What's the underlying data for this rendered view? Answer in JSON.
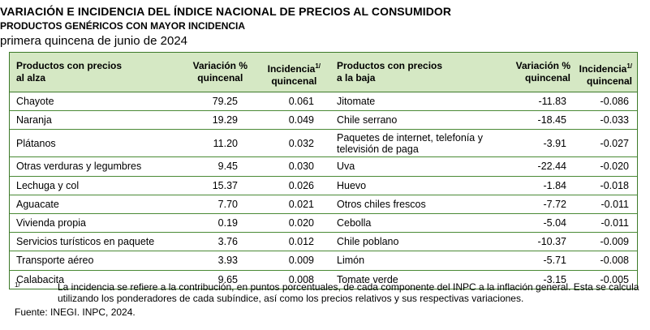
{
  "title": "VARIACIÓN E INCIDENCIA DEL ÍNDICE NACIONAL DE PRECIOS AL CONSUMIDOR",
  "subtitle": "PRODUCTOS GENÉRICOS CON MAYOR INCIDENCIA",
  "period": "primera quincena de junio de 2024",
  "headers": {
    "alza_line1": "Productos con precios",
    "alza_line2": "al alza",
    "var1_line1": "Variación %",
    "var1_line2": "quincenal",
    "inc1_line1": "Incidencia",
    "inc1_sup": "1/",
    "inc1_line2": "quincenal",
    "baja_line1": "Productos con precios",
    "baja_line2": "a la baja",
    "var2_line1": "Variación %",
    "var2_line2": "quincenal",
    "inc2_line1": "Incidencia",
    "inc2_sup": "1/",
    "inc2_line2": "quincenal"
  },
  "rows": [
    {
      "up": "Chayote",
      "up_var": "79.25",
      "up_inc": "0.061",
      "down": "Jitomate",
      "down_var": "-11.83",
      "down_inc": "-0.086"
    },
    {
      "up": "Naranja",
      "up_var": "19.29",
      "up_inc": "0.049",
      "down": "Chile serrano",
      "down_var": "-18.45",
      "down_inc": "-0.033"
    },
    {
      "up": "Plátanos",
      "up_var": "11.20",
      "up_inc": "0.032",
      "down_line1": "Paquetes de internet, telefonía y",
      "down_line2": "televisión de paga",
      "down_var": "-3.91",
      "down_inc": "-0.027"
    },
    {
      "up": "Otras verduras y legumbres",
      "up_var": "9.45",
      "up_inc": "0.030",
      "down": "Uva",
      "down_var": "-22.44",
      "down_inc": "-0.020"
    },
    {
      "up": "Lechuga y col",
      "up_var": "15.37",
      "up_inc": "0.026",
      "down": "Huevo",
      "down_var": "-1.84",
      "down_inc": "-0.018"
    },
    {
      "up": "Aguacate",
      "up_var": "7.70",
      "up_inc": "0.021",
      "down": "Otros chiles frescos",
      "down_var": "-7.72",
      "down_inc": "-0.011"
    },
    {
      "up": "Vivienda propia",
      "up_var": "0.19",
      "up_inc": "0.020",
      "down": "Cebolla",
      "down_var": "-5.04",
      "down_inc": "-0.011"
    },
    {
      "up": "Servicios turísticos en paquete",
      "up_var": "3.76",
      "up_inc": "0.012",
      "down": "Chile poblano",
      "down_var": "-10.37",
      "down_inc": "-0.009"
    },
    {
      "up": "Transporte aéreo",
      "up_var": "3.93",
      "up_inc": "0.009",
      "down": "Limón",
      "down_var": "-5.71",
      "down_inc": "-0.008"
    },
    {
      "up": "Calabacita",
      "up_var": "9.65",
      "up_inc": "0.008",
      "down": "Tomate verde",
      "down_var": "-3.15",
      "down_inc": "-0.005"
    }
  ],
  "footnote_marker": "1/",
  "footnote": "La incidencia se refiere a la contribución, en puntos porcentuales, de cada componente del INPC a la inflación general. Esta se calcula utilizando los ponderadores de cada subíndice, así como los precios relativos y sus respectivas variaciones.",
  "source": "Fuente: INEGI. INPC, 2024."
}
